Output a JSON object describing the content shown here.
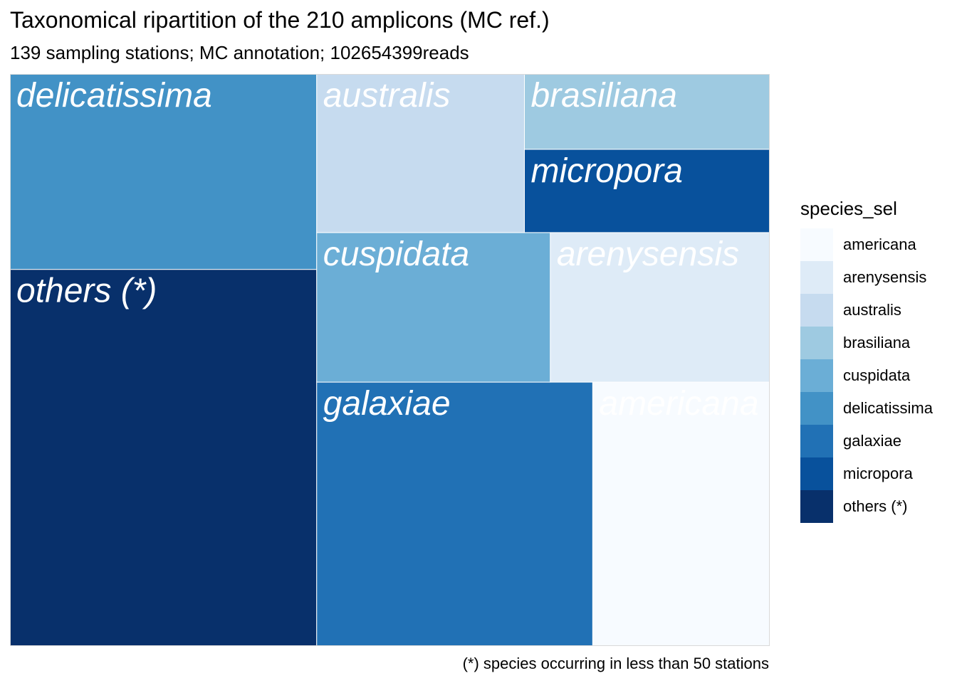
{
  "chart_data": {
    "type": "treemap",
    "title": "Taxonomical ripartition of the 210 amplicons (MC ref.)",
    "subtitle": "139 sampling stations; MC annotation; 102654399reads",
    "caption": "(*) species occurring in less than 50 stations",
    "legend": {
      "title": "species_sel",
      "placement": "right",
      "entries": [
        {
          "label": "americana",
          "color": "#F7FBFF"
        },
        {
          "label": "arenysensis",
          "color": "#DEEBF7"
        },
        {
          "label": "australis",
          "color": "#C6DBEF"
        },
        {
          "label": "brasiliana",
          "color": "#9ECAE1"
        },
        {
          "label": "cuspidata",
          "color": "#6BAED6"
        },
        {
          "label": "delicatissima",
          "color": "#4292C6"
        },
        {
          "label": "galaxiae",
          "color": "#2171B5"
        },
        {
          "label": "micropora",
          "color": "#08519C"
        },
        {
          "label": "others (*)",
          "color": "#08306B"
        }
      ]
    },
    "tiles": [
      {
        "label": "others (*)",
        "share": 0.2658,
        "color": "#08306B"
      },
      {
        "label": "delicatissima",
        "share": 0.1379,
        "color": "#4292C6"
      },
      {
        "label": "galaxiae",
        "share": 0.1207,
        "color": "#2171B5"
      },
      {
        "label": "cuspidata",
        "share": 0.0804,
        "color": "#6BAED6"
      },
      {
        "label": "americana",
        "share": 0.0774,
        "color": "#F7FBFF"
      },
      {
        "label": "arenysensis",
        "share": 0.0755,
        "color": "#DEEBF7"
      },
      {
        "label": "australis",
        "share": 0.0758,
        "color": "#C6DBEF"
      },
      {
        "label": "micropora",
        "share": 0.047,
        "color": "#08519C"
      },
      {
        "label": "brasiliana",
        "share": 0.0425,
        "color": "#9ECAE1"
      }
    ]
  }
}
